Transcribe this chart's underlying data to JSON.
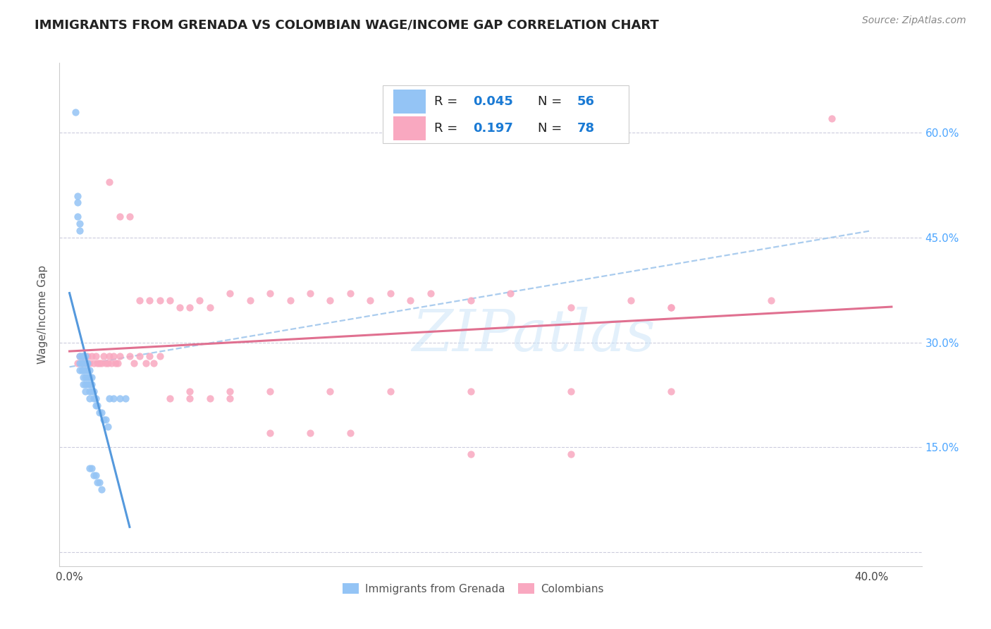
{
  "title": "IMMIGRANTS FROM GRENADA VS COLOMBIAN WAGE/INCOME GAP CORRELATION CHART",
  "source": "Source: ZipAtlas.com",
  "ylabel": "Wage/Income Gap",
  "xlim": [
    0.0,
    0.42
  ],
  "ylim": [
    0.0,
    0.68
  ],
  "xticks": [
    0.0,
    0.1,
    0.2,
    0.3,
    0.4
  ],
  "xtick_labels": [
    "0.0%",
    "",
    "",
    "",
    "40.0%"
  ],
  "yticks": [
    0.15,
    0.3,
    0.45,
    0.6
  ],
  "ytick_labels_right": [
    "15.0%",
    "30.0%",
    "45.0%",
    "60.0%"
  ],
  "watermark": "ZIPatlas",
  "color_grenada": "#94C4F5",
  "color_colombian": "#F9A8C0",
  "trendline_grenada_color": "#5599dd",
  "trendline_colombian_color": "#e07090",
  "dashed_line_color": "#aaccee",
  "background_color": "#ffffff",
  "grenada_x": [
    0.003,
    0.004,
    0.004,
    0.004,
    0.005,
    0.005,
    0.005,
    0.005,
    0.005,
    0.006,
    0.006,
    0.006,
    0.007,
    0.007,
    0.007,
    0.007,
    0.007,
    0.008,
    0.008,
    0.008,
    0.008,
    0.008,
    0.008,
    0.009,
    0.009,
    0.009,
    0.009,
    0.01,
    0.01,
    0.01,
    0.01,
    0.01,
    0.011,
    0.011,
    0.011,
    0.012,
    0.012,
    0.013,
    0.013,
    0.014,
    0.015,
    0.016,
    0.017,
    0.018,
    0.019,
    0.02,
    0.022,
    0.025,
    0.028,
    0.01,
    0.011,
    0.012,
    0.013,
    0.014,
    0.015,
    0.016
  ],
  "grenada_y": [
    0.63,
    0.5,
    0.51,
    0.48,
    0.47,
    0.46,
    0.28,
    0.27,
    0.26,
    0.28,
    0.27,
    0.26,
    0.28,
    0.27,
    0.26,
    0.25,
    0.24,
    0.28,
    0.27,
    0.26,
    0.25,
    0.24,
    0.23,
    0.27,
    0.26,
    0.25,
    0.24,
    0.26,
    0.25,
    0.24,
    0.23,
    0.22,
    0.25,
    0.24,
    0.23,
    0.23,
    0.22,
    0.22,
    0.21,
    0.21,
    0.2,
    0.2,
    0.19,
    0.19,
    0.18,
    0.22,
    0.22,
    0.22,
    0.22,
    0.12,
    0.12,
    0.11,
    0.11,
    0.1,
    0.1,
    0.09
  ],
  "colombian_x": [
    0.004,
    0.005,
    0.006,
    0.007,
    0.008,
    0.009,
    0.01,
    0.011,
    0.012,
    0.013,
    0.014,
    0.015,
    0.016,
    0.017,
    0.018,
    0.019,
    0.02,
    0.021,
    0.022,
    0.023,
    0.024,
    0.025,
    0.03,
    0.032,
    0.035,
    0.038,
    0.04,
    0.042,
    0.045,
    0.05,
    0.055,
    0.06,
    0.065,
    0.07,
    0.08,
    0.09,
    0.1,
    0.11,
    0.12,
    0.13,
    0.14,
    0.15,
    0.16,
    0.17,
    0.18,
    0.2,
    0.22,
    0.25,
    0.28,
    0.3,
    0.35,
    0.02,
    0.025,
    0.03,
    0.035,
    0.04,
    0.045,
    0.05,
    0.06,
    0.07,
    0.08,
    0.1,
    0.12,
    0.14,
    0.2,
    0.25,
    0.38,
    0.3,
    0.06,
    0.08,
    0.1,
    0.13,
    0.16,
    0.2,
    0.25,
    0.3
  ],
  "colombian_y": [
    0.27,
    0.28,
    0.27,
    0.28,
    0.27,
    0.28,
    0.27,
    0.28,
    0.27,
    0.28,
    0.27,
    0.27,
    0.27,
    0.28,
    0.27,
    0.27,
    0.28,
    0.27,
    0.28,
    0.27,
    0.27,
    0.28,
    0.28,
    0.27,
    0.28,
    0.27,
    0.28,
    0.27,
    0.28,
    0.36,
    0.35,
    0.35,
    0.36,
    0.35,
    0.37,
    0.36,
    0.37,
    0.36,
    0.37,
    0.36,
    0.37,
    0.36,
    0.37,
    0.36,
    0.37,
    0.36,
    0.37,
    0.35,
    0.36,
    0.35,
    0.36,
    0.53,
    0.48,
    0.48,
    0.36,
    0.36,
    0.36,
    0.22,
    0.22,
    0.22,
    0.22,
    0.17,
    0.17,
    0.17,
    0.14,
    0.14,
    0.62,
    0.35,
    0.23,
    0.23,
    0.23,
    0.23,
    0.23,
    0.23,
    0.23,
    0.23
  ]
}
